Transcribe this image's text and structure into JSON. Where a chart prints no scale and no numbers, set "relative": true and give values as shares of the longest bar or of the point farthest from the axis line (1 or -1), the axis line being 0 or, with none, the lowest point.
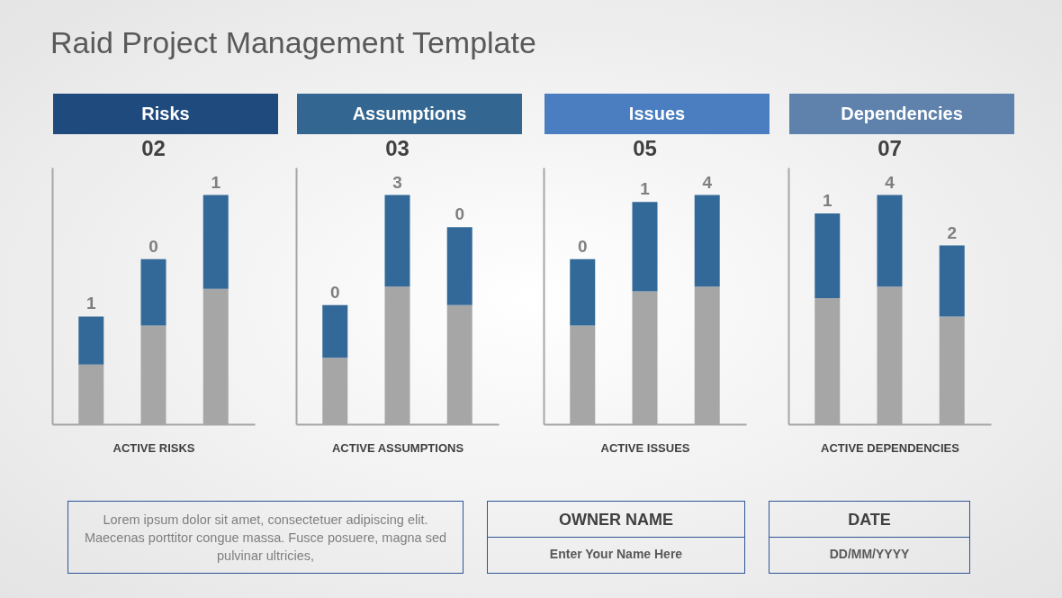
{
  "chart_data": [
    {
      "type": "other",
      "title": "Raid Project Management Template"
    },
    {
      "type": "bar",
      "title": "Risks",
      "subtitle": "02",
      "xlabel": "ACTIVE RISKS",
      "stacked": true,
      "relative": true,
      "categories": [
        null,
        null,
        null
      ],
      "series": [
        {
          "color": "#a6a6a6",
          "values": [
            0.26,
            0.43,
            0.59
          ]
        },
        {
          "color": "#336998",
          "values": [
            0.21,
            0.29,
            0.41
          ]
        }
      ],
      "annotations": [
        "1",
        "0",
        "1"
      ]
    },
    {
      "type": "bar",
      "title": "Assumptions",
      "subtitle": "03",
      "xlabel": "ACTIVE ASSUMPTIONS",
      "stacked": true,
      "relative": true,
      "categories": [
        null,
        null,
        null
      ],
      "series": [
        {
          "color": "#a6a6a6",
          "values": [
            0.29,
            0.6,
            0.52
          ]
        },
        {
          "color": "#336998",
          "values": [
            0.23,
            0.4,
            0.34
          ]
        }
      ],
      "annotations": [
        "0",
        "3",
        "0"
      ]
    },
    {
      "type": "bar",
      "title": "Issues",
      "subtitle": "05",
      "xlabel": "ACTIVE ISSUES",
      "stacked": true,
      "relative": true,
      "categories": [
        null,
        null,
        null
      ],
      "series": [
        {
          "color": "#a6a6a6",
          "values": [
            0.43,
            0.58,
            0.6
          ]
        },
        {
          "color": "#336998",
          "values": [
            0.29,
            0.39,
            0.4
          ]
        }
      ],
      "annotations": [
        "0",
        "1",
        "4"
      ]
    },
    {
      "type": "bar",
      "title": "Dependencies",
      "subtitle": "07",
      "xlabel": "ACTIVE DEPENDENCIES",
      "stacked": true,
      "relative": true,
      "categories": [
        null,
        null,
        null
      ],
      "series": [
        {
          "color": "#a6a6a6",
          "values": [
            0.55,
            0.6,
            0.47
          ]
        },
        {
          "color": "#336998",
          "values": [
            0.37,
            0.4,
            0.31
          ]
        }
      ],
      "annotations": [
        "1",
        "4",
        "2"
      ]
    },
    {
      "type": "other",
      "annotations": [
        "Lorem ipsum dolor sit amet, consectetuer adipiscing elit. Maecenas porttitor congue massa. Fusce posuere, magna sed pulvinar ultricies,",
        "OWNER NAME",
        "Enter Your Name Here",
        "DATE",
        "DD/MM/YYYY"
      ]
    }
  ]
}
